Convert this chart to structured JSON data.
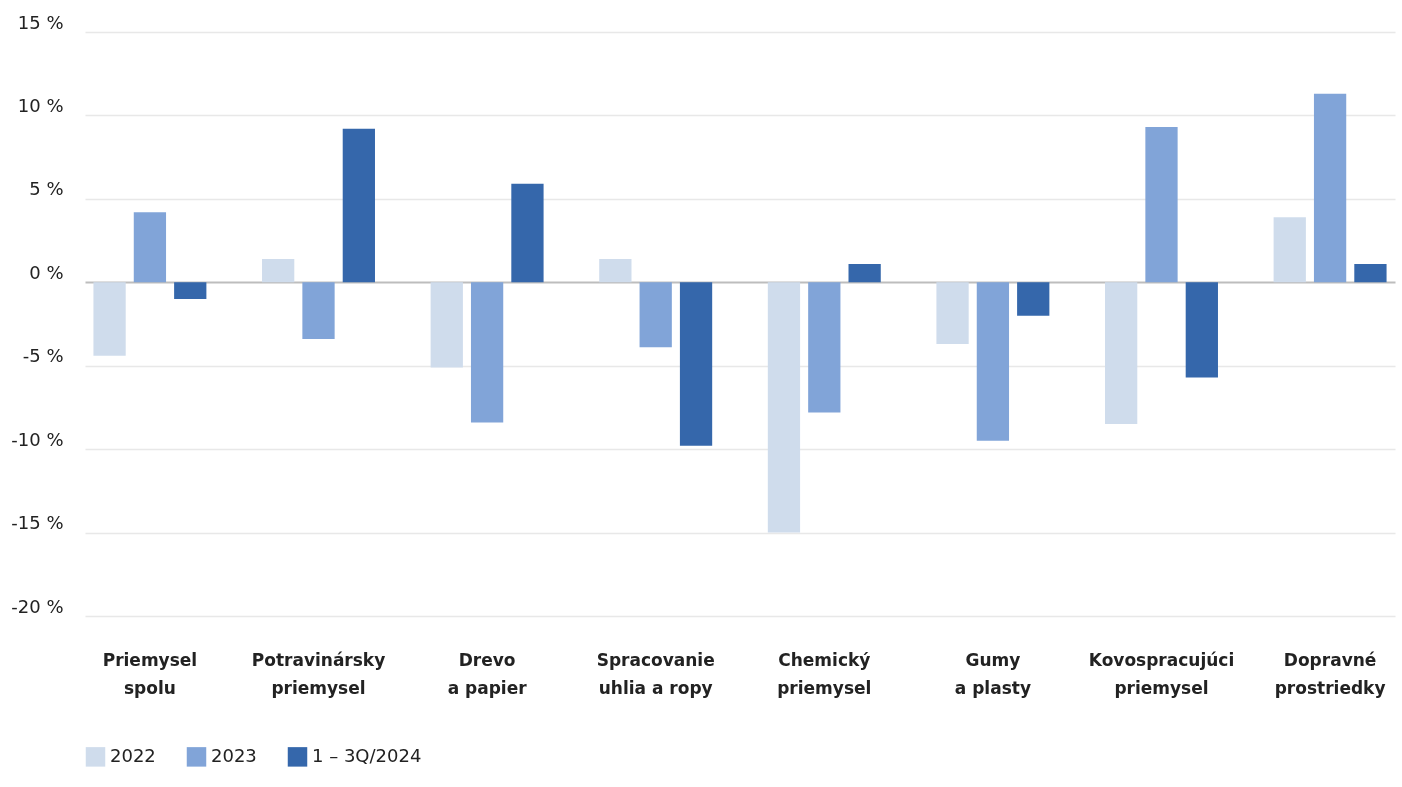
{
  "chart_data": {
    "type": "bar",
    "categories": [
      "Priemysel spolu",
      "Potravinársky priemysel",
      "Drevo a papier",
      "Spracovanie uhlia a ropy",
      "Chemický priemysel",
      "Gumy a plasty",
      "Kovospracujúci priemysel",
      "Dopravné prostriedky"
    ],
    "series": [
      {
        "name": "2022",
        "color": "#cfdcec",
        "values": [
          -4.4,
          1.4,
          -5.1,
          1.4,
          -15.0,
          -3.7,
          -8.5,
          3.9
        ]
      },
      {
        "name": "2023",
        "color": "#81a4d8",
        "values": [
          4.2,
          -3.4,
          -8.4,
          -3.9,
          -7.8,
          -9.5,
          9.3,
          11.3
        ]
      },
      {
        "name": "1 – 3Q/2024",
        "color": "#3567ab",
        "values": [
          -1.0,
          9.2,
          5.9,
          -9.8,
          1.1,
          -2.0,
          -5.7,
          1.1
        ]
      }
    ],
    "ylim": [
      -20,
      15
    ],
    "yticks": [
      {
        "value": -20,
        "label": "-20 %"
      },
      {
        "value": -15,
        "label": "-15 %"
      },
      {
        "value": -10,
        "label": "-10 %"
      },
      {
        "value": -5,
        "label": "-5 %"
      },
      {
        "value": 0,
        "label": "0 %"
      },
      {
        "value": 5,
        "label": "5 %"
      },
      {
        "value": 10,
        "label": "10 %"
      },
      {
        "value": 15,
        "label": "15 %"
      }
    ],
    "grid": "y",
    "legend": "bottom"
  }
}
